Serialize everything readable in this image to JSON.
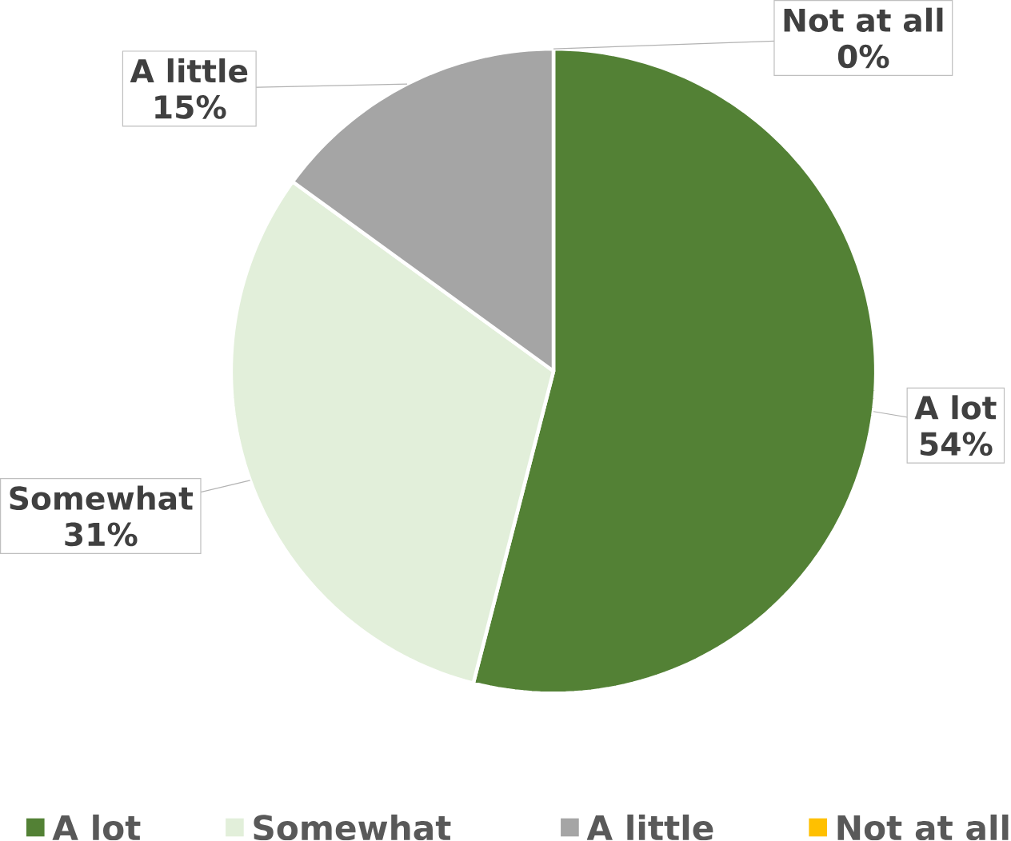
{
  "chart_data": {
    "type": "pie",
    "categories": [
      "A lot",
      "Somewhat",
      "A little",
      "Not at all"
    ],
    "values": [
      54,
      31,
      15,
      0
    ],
    "value_labels": [
      "54%",
      "31%",
      "15%",
      "0%"
    ],
    "colors": [
      "#538135",
      "#e2efda",
      "#a5a5a5",
      "#ffc000"
    ],
    "legend": "bottom"
  }
}
